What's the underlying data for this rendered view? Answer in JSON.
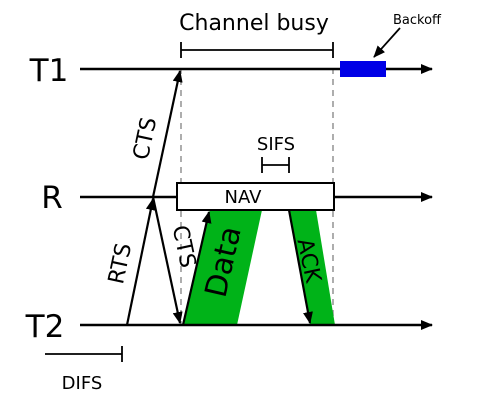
{
  "nodes": {
    "t1": "T1",
    "r": "R",
    "t2": "T2"
  },
  "labels": {
    "channel_busy": "Channel busy",
    "backoff": "Backoff",
    "sifs": "SIFS",
    "nav": "NAV",
    "difs": "DIFS"
  },
  "frames": {
    "cts_to_t1": "CTS",
    "cts_to_t2": "CTS",
    "rts": "RTS",
    "data": "Data",
    "ack": "ACK"
  },
  "colors": {
    "line": "#000000",
    "frame_fill": "#00b318",
    "backoff_fill": "#0000e6",
    "dashed": "#999999",
    "nav_fill": "#ffffff"
  }
}
